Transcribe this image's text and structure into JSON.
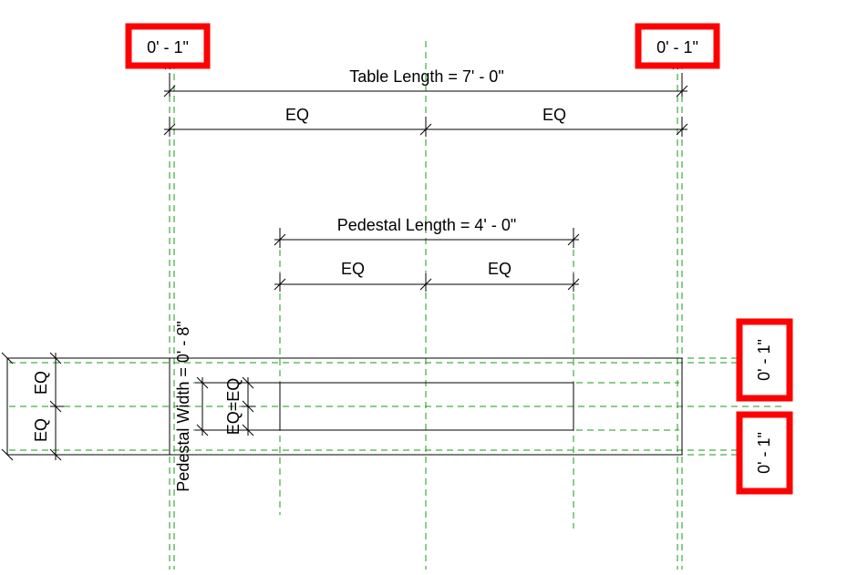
{
  "colors": {
    "reference_plane": "#1a9a1a",
    "dimension": "#000000",
    "highlight_box": "#ff0000"
  },
  "dimensions": {
    "top_left_offset": "0' - 1\"",
    "top_right_offset": "0' - 1\"",
    "table_length": "Table Length = 7' - 0\"",
    "table_eq_left": "EQ",
    "table_eq_right": "EQ",
    "pedestal_length": "Pedestal Length = 4' - 0\"",
    "pedestal_eq_left": "EQ",
    "pedestal_eq_right": "EQ",
    "pedestal_width": "Pedestal Width = 0' - 8\"",
    "pedestal_width_eq": "EQ=EQ",
    "table_width_eq_top": "EQ",
    "table_width_eq_bottom": "EQ",
    "right_top_offset": "0' - 1\"",
    "right_bottom_offset": "0' - 1\""
  }
}
